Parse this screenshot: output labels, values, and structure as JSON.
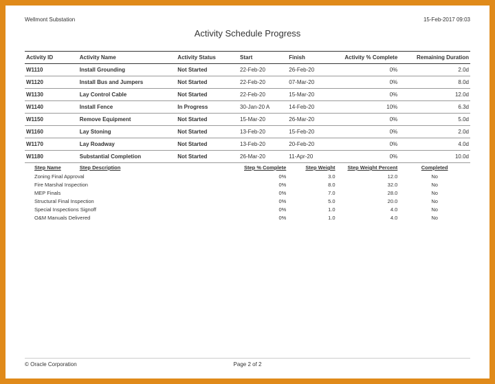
{
  "header": {
    "project": "Wellmont Substation",
    "timestamp": "15-Feb-2017 09:03"
  },
  "title": "Activity Schedule Progress",
  "columns": {
    "id": "Activity ID",
    "name": "Activity Name",
    "status": "Activity Status",
    "start": "Start",
    "finish": "Finish",
    "pct": "Activity % Complete",
    "dur": "Remaining Duration"
  },
  "rows": [
    {
      "id": "W1110",
      "name": "Install Grounding",
      "status": "Not Started",
      "start": "22-Feb-20",
      "finish": "26-Feb-20",
      "pct": "0%",
      "dur": "2.0d"
    },
    {
      "id": "W1120",
      "name": "Install Bus and Jumpers",
      "status": "Not Started",
      "start": "22-Feb-20",
      "finish": "07-Mar-20",
      "pct": "0%",
      "dur": "8.0d"
    },
    {
      "id": "W1130",
      "name": "Lay Control Cable",
      "status": "Not Started",
      "start": "22-Feb-20",
      "finish": "15-Mar-20",
      "pct": "0%",
      "dur": "12.0d"
    },
    {
      "id": "W1140",
      "name": "Install Fence",
      "status": "In Progress",
      "start": "30-Jan-20 A",
      "finish": "14-Feb-20",
      "pct": "10%",
      "dur": "6.3d"
    },
    {
      "id": "W1150",
      "name": "Remove Equipment",
      "status": "Not Started",
      "start": "15-Mar-20",
      "finish": "26-Mar-20",
      "pct": "0%",
      "dur": "5.0d"
    },
    {
      "id": "W1160",
      "name": "Lay Stoning",
      "status": "Not Started",
      "start": "13-Feb-20",
      "finish": "15-Feb-20",
      "pct": "0%",
      "dur": "2.0d"
    },
    {
      "id": "W1170",
      "name": "Lay Roadway",
      "status": "Not Started",
      "start": "13-Feb-20",
      "finish": "20-Feb-20",
      "pct": "0%",
      "dur": "4.0d"
    },
    {
      "id": "W1180",
      "name": "Substantial Completion",
      "status": "Not Started",
      "start": "26-Mar-20",
      "finish": "11-Apr-20",
      "pct": "0%",
      "dur": "10.0d"
    }
  ],
  "steps_header": {
    "name": "Step Name",
    "desc": "Step Description",
    "pct": "Step % Complete",
    "weight": "Step Weight",
    "wpct": "Step Weight Percent",
    "completed": "Completed"
  },
  "steps": [
    {
      "name": "Zoning Final Approval",
      "pct": "0%",
      "weight": "3.0",
      "wpct": "12.0",
      "completed": "No"
    },
    {
      "name": "Fire Marshal Inspection",
      "pct": "0%",
      "weight": "8.0",
      "wpct": "32.0",
      "completed": "No"
    },
    {
      "name": "MEP Finals",
      "pct": "0%",
      "weight": "7.0",
      "wpct": "28.0",
      "completed": "No"
    },
    {
      "name": "Structural Final Inspection",
      "pct": "0%",
      "weight": "5.0",
      "wpct": "20.0",
      "completed": "No"
    },
    {
      "name": "Special Inspections Signoff",
      "pct": "0%",
      "weight": "1.0",
      "wpct": "4.0",
      "completed": "No"
    },
    {
      "name": "O&M Manuals Delivered",
      "pct": "0%",
      "weight": "1.0",
      "wpct": "4.0",
      "completed": "No"
    }
  ],
  "footer": {
    "copyright": "© Oracle Corporation",
    "page": "Page 2 of 2"
  },
  "colors": {
    "frame": "#e08a1a",
    "page": "#ffffff",
    "text": "#333333",
    "rule": "#333333"
  }
}
